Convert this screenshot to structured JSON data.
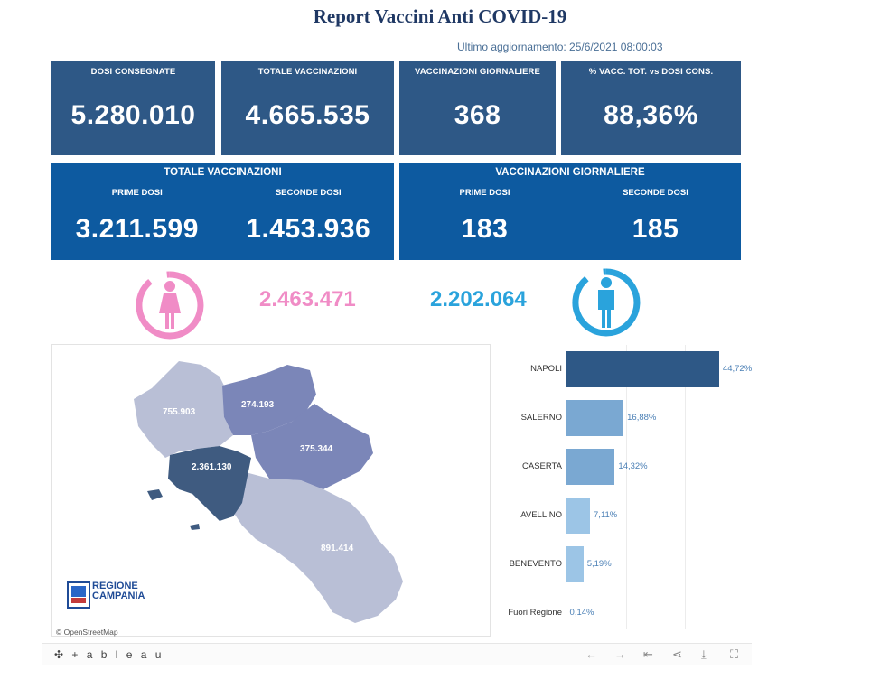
{
  "header": {
    "title": "Report Vaccini Anti COVID-19",
    "updated": "Ultimo aggiornamento: 25/6/2021  08:00:03"
  },
  "kpis": [
    {
      "label": "DOSI  CONSEGNATE",
      "value": "5.280.010"
    },
    {
      "label": "TOTALE VACCINAZIONI",
      "value": "4.665.535"
    },
    {
      "label": "VACCINAZIONI GIORNALIERE",
      "value": "368"
    },
    {
      "label": "% VACC. TOT. vs DOSI CONS.",
      "value": "88,36%"
    }
  ],
  "totale_panel": {
    "title": "TOTALE VACCINAZIONI",
    "prime_label": "PRIME DOSI",
    "prime_value": "3.211.599",
    "seconde_label": "SECONDE DOSI",
    "seconde_value": "1.453.936"
  },
  "giornaliere_panel": {
    "title": "VACCINAZIONI GIORNALIERE",
    "prime_label": "PRIME DOSI",
    "prime_value": "183",
    "seconde_label": "SECONDE DOSI",
    "seconde_value": "185"
  },
  "gender": {
    "female_value": "2.463.471",
    "female_color": "#f08cc6",
    "male_value": "2.202.064",
    "male_color": "#2aa3dc"
  },
  "map": {
    "labels": {
      "caserta": "755.903",
      "benevento": "274.193",
      "avellino": "375.344",
      "napoli": "2.361.130",
      "salerno": "891.414"
    },
    "logo_line1": "REGIONE",
    "logo_line2": "CAMPANIA",
    "attribution": "© OpenStreetMap"
  },
  "chart_data": {
    "type": "bar",
    "orientation": "horizontal",
    "categories": [
      "NAPOLI",
      "SALERNO",
      "CASERTA",
      "AVELLINO",
      "BENEVENTO",
      "Fuori Regione"
    ],
    "values": [
      44.72,
      16.88,
      14.32,
      7.11,
      5.19,
      0.14
    ],
    "labels": [
      "44,72%",
      "16,88%",
      "14,32%",
      "7,11%",
      "5,19%",
      "0,14%"
    ],
    "colors": [
      "#2e5886",
      "#7aa8d2",
      "#7aa8d2",
      "#9cc5e6",
      "#9cc5e6",
      "#b7d5ef"
    ],
    "xlim": [
      0,
      50
    ],
    "grid": true
  },
  "footer": {
    "brand": "+ a b l e a u",
    "icons": [
      "undo-icon",
      "redo-icon",
      "revert-icon",
      "share-icon",
      "download-icon",
      "fullscreen-icon"
    ]
  }
}
